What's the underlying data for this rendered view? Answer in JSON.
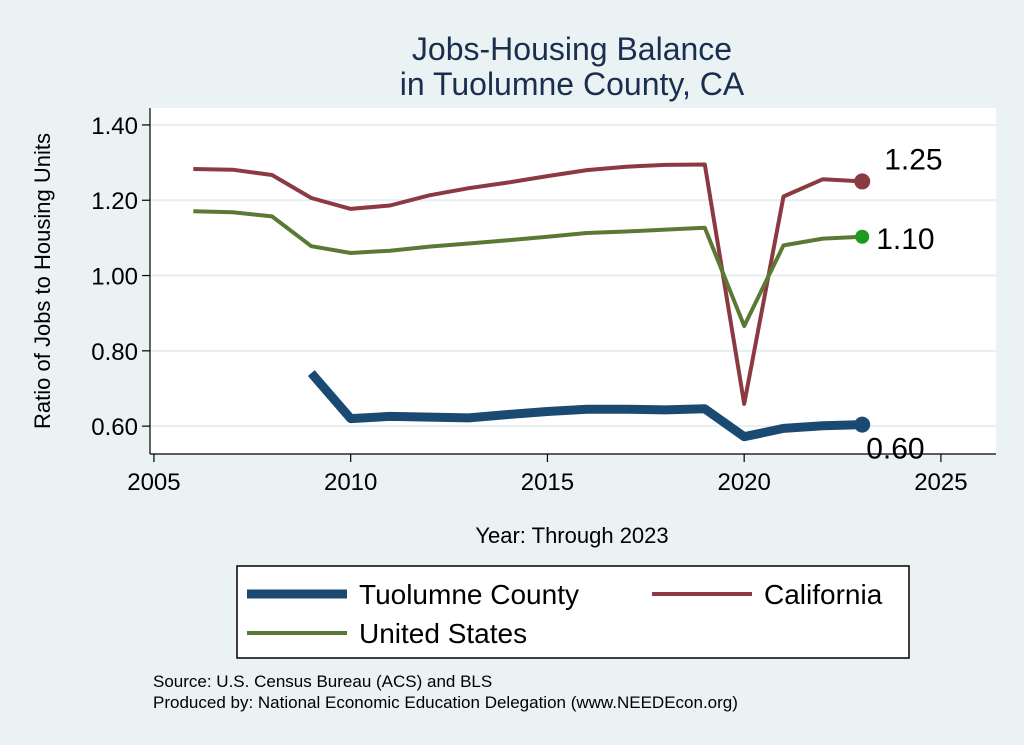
{
  "chart_data": {
    "type": "line",
    "title": [
      "Jobs-Housing Balance",
      "in Tuolumne County, CA"
    ],
    "xlabel": "Year: Through 2023",
    "ylabel": "Ratio of Jobs to Housing Units",
    "xlim": [
      2004.9,
      2026.4
    ],
    "ylim": [
      0.526,
      1.445
    ],
    "x_ticks": [
      {
        "value": 2005,
        "label": "2005"
      },
      {
        "value": 2010,
        "label": "2010"
      },
      {
        "value": 2015,
        "label": "2015"
      },
      {
        "value": 2020,
        "label": "2020"
      },
      {
        "value": 2025,
        "label": "2025"
      }
    ],
    "y_ticks": [
      {
        "value": 0.6,
        "label": "0.60"
      },
      {
        "value": 0.8,
        "label": "0.80"
      },
      {
        "value": 1.0,
        "label": "1.00"
      },
      {
        "value": 1.2,
        "label": "1.20"
      },
      {
        "value": 1.4,
        "label": "1.40"
      }
    ],
    "grid": true,
    "legend_placement": "bottom",
    "series": [
      {
        "name": "California",
        "color": "#8c3a42",
        "width": 4,
        "x": [
          2006,
          2007,
          2008,
          2009,
          2010,
          2011,
          2012,
          2013,
          2014,
          2015,
          2016,
          2017,
          2018,
          2019,
          2020,
          2021,
          2022,
          2023
        ],
        "y": [
          1.283,
          1.281,
          1.267,
          1.206,
          1.177,
          1.186,
          1.213,
          1.232,
          1.247,
          1.264,
          1.28,
          1.289,
          1.294,
          1.295,
          0.659,
          1.21,
          1.256,
          1.25
        ],
        "end_label": "1.25",
        "marker_radius": 8
      },
      {
        "name": "United States",
        "color": "#5a7a34",
        "width": 4,
        "x": [
          2006,
          2007,
          2008,
          2009,
          2010,
          2011,
          2012,
          2013,
          2014,
          2015,
          2016,
          2017,
          2018,
          2019,
          2020,
          2021,
          2022,
          2023
        ],
        "y": [
          1.171,
          1.168,
          1.157,
          1.078,
          1.06,
          1.066,
          1.077,
          1.085,
          1.094,
          1.103,
          1.113,
          1.117,
          1.122,
          1.127,
          0.866,
          1.08,
          1.098,
          1.103
        ],
        "end_label": "1.10",
        "marker_radius": 7,
        "marker_color": "#1f9a1f"
      },
      {
        "name": "Tuolumne County",
        "color": "#1a4a72",
        "width": 9,
        "x": [
          2009,
          2010,
          2011,
          2012,
          2013,
          2014,
          2015,
          2016,
          2017,
          2018,
          2019,
          2020,
          2021,
          2022,
          2023
        ],
        "y": [
          0.741,
          0.62,
          0.626,
          0.624,
          0.622,
          0.631,
          0.639,
          0.645,
          0.645,
          0.643,
          0.646,
          0.572,
          0.594,
          0.601,
          0.604
        ],
        "end_label": "0.60",
        "marker_radius": 8
      }
    ],
    "legend": [
      {
        "label": "Tuolumne County",
        "color": "#1a4a72",
        "width": 9
      },
      {
        "label": "California",
        "color": "#8c3a42",
        "width": 4
      },
      {
        "label": "United States",
        "color": "#5a7a34",
        "width": 4
      }
    ],
    "source_lines": [
      "Source: U.S. Census Bureau (ACS) and BLS",
      "Produced by: National Economic Education Delegation (www.NEEDEcon.org)"
    ]
  }
}
